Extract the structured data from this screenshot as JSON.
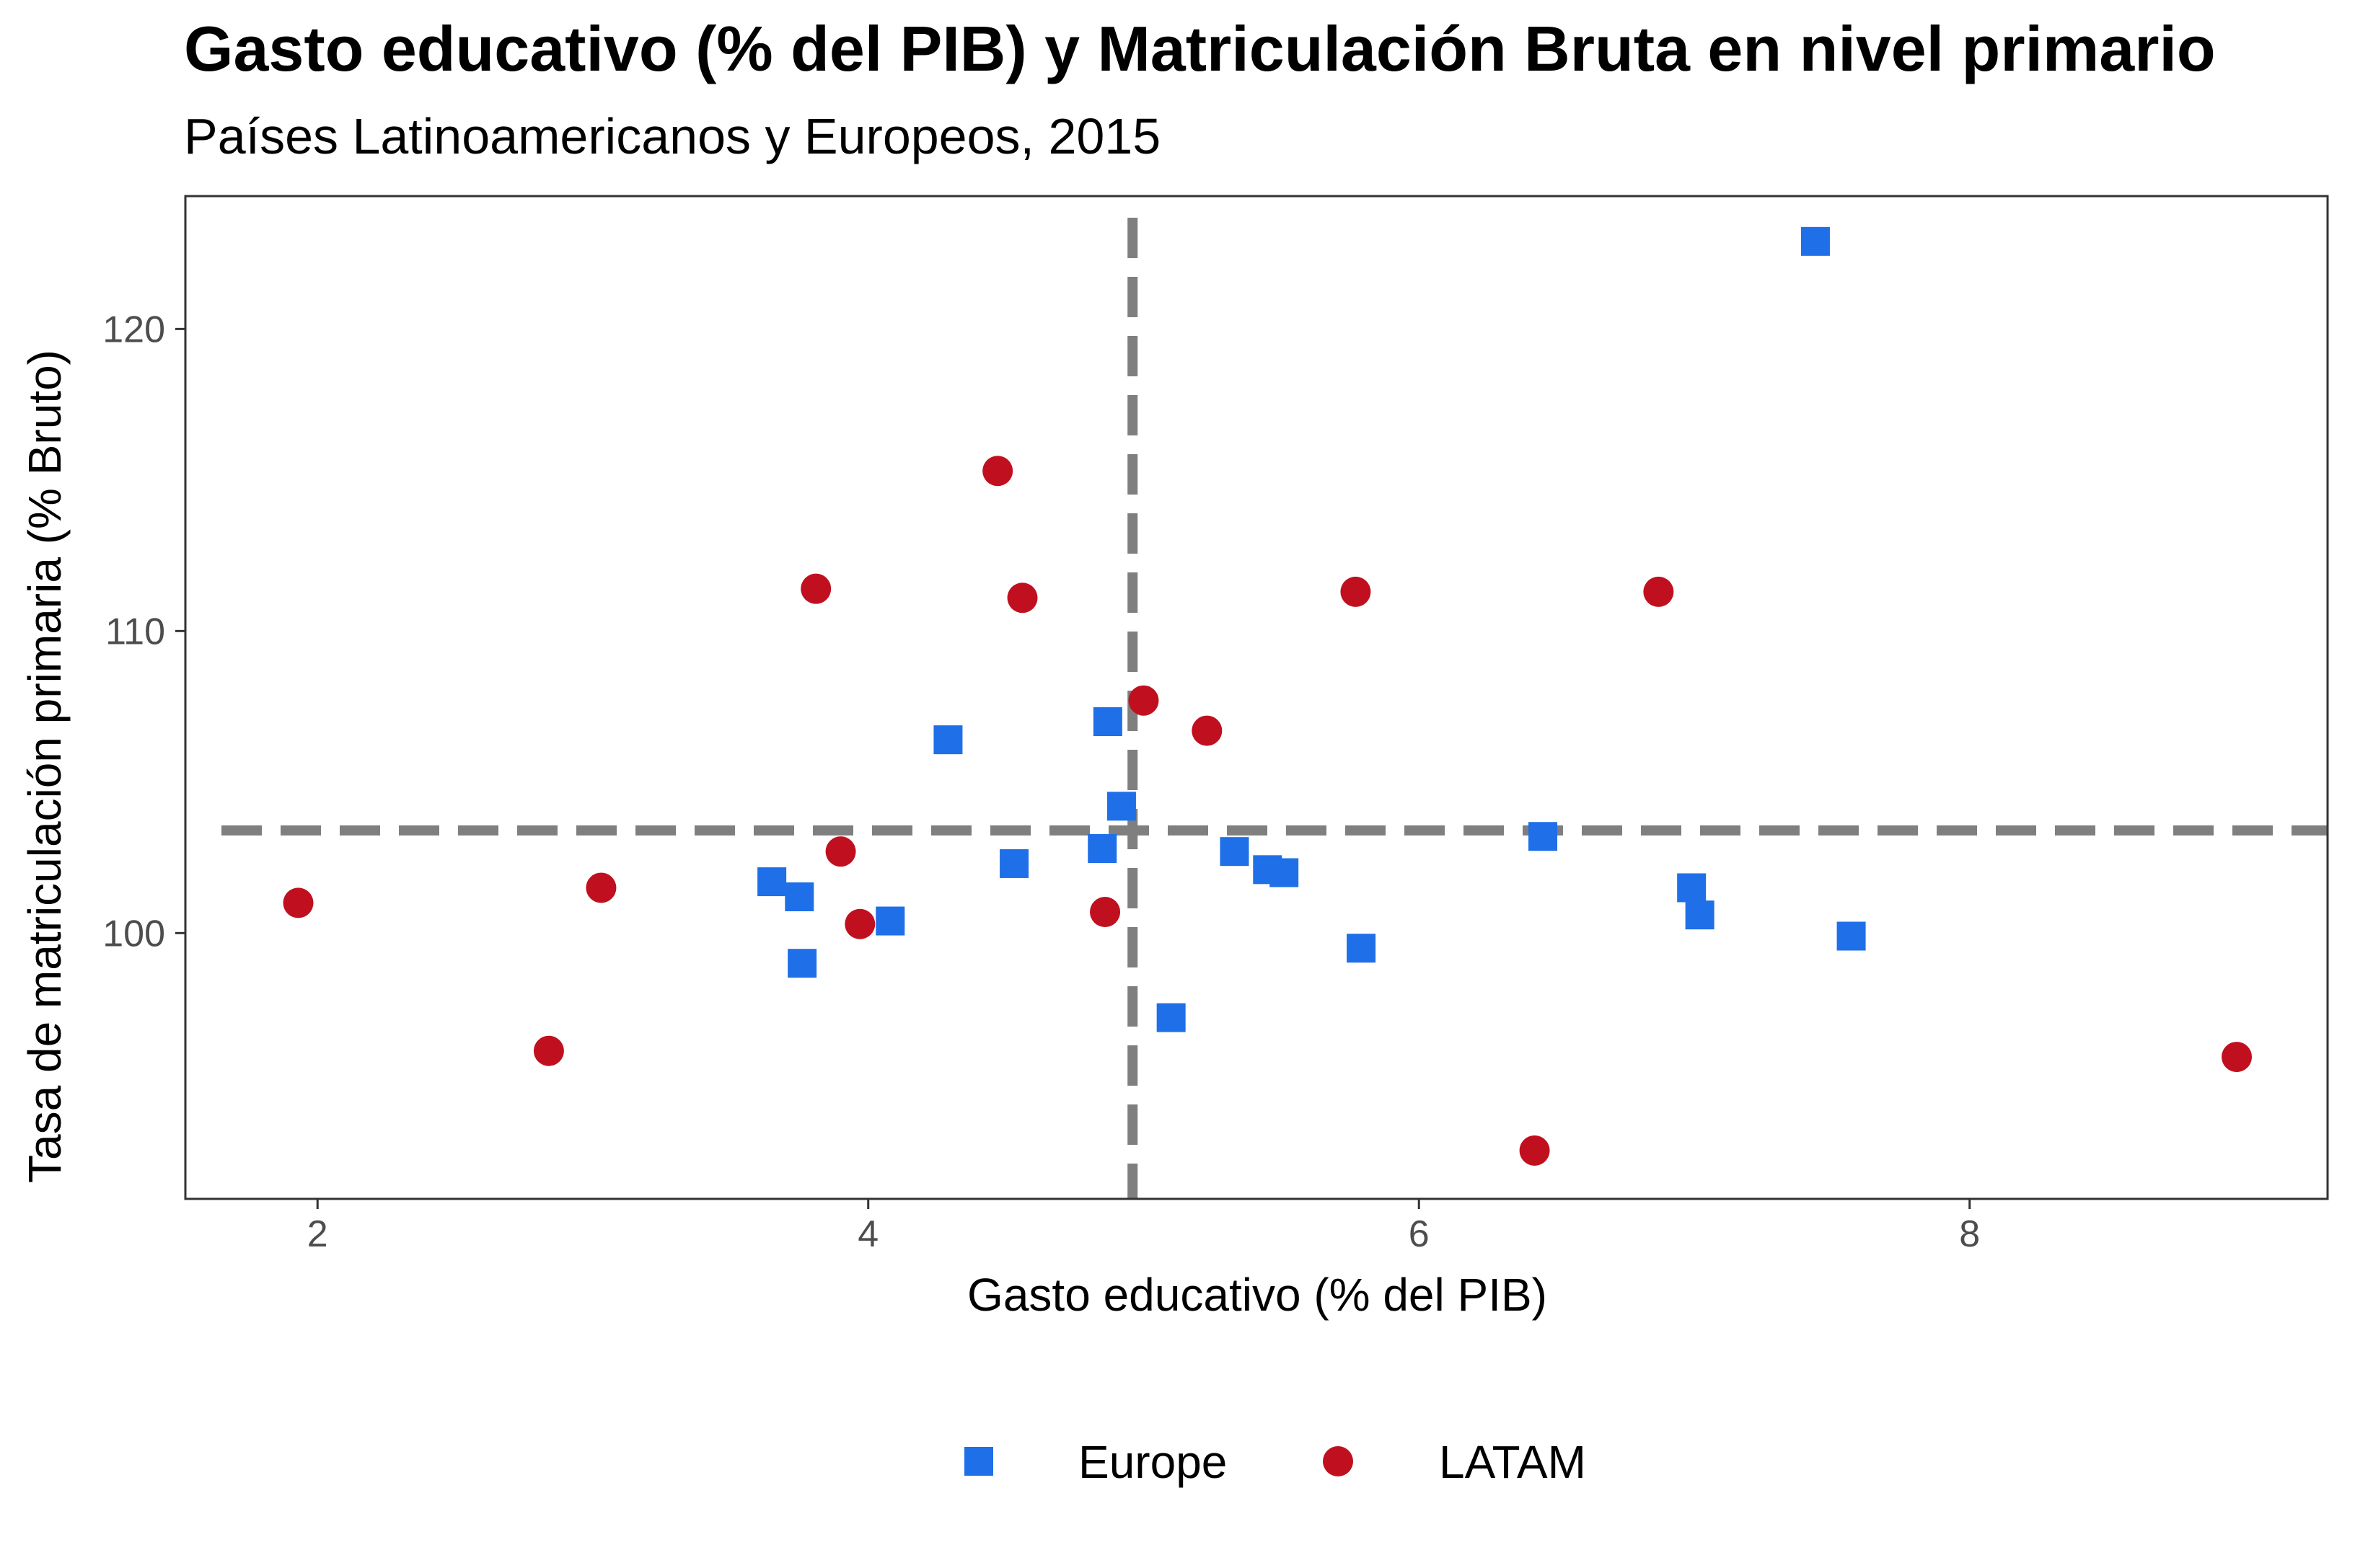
{
  "chart_data": {
    "type": "scatter",
    "title": "Gasto educativo (% del PIB) y Matriculación Bruta en nivel primario",
    "subtitle": "Países Latinoamericanos y Europeos, 2015",
    "xlabel": "Gasto educativo (% del PIB)",
    "ylabel": "Tasa de matriculación primaria (% Bruto)",
    "xlim": [
      1.52,
      9.3
    ],
    "ylim": [
      91.2,
      124.4
    ],
    "xticks": [
      2,
      4,
      6,
      8
    ],
    "yticks": [
      100,
      110,
      120
    ],
    "grid": false,
    "legend_position": "bottom",
    "reference_lines": {
      "vertical_x": 4.96,
      "horizontal_y": 103.4,
      "style": "dashed",
      "color": "#7f7f7f"
    },
    "series": [
      {
        "name": "Europe",
        "marker": "square",
        "color": "#1f6fe8",
        "points": [
          {
            "x": 7.44,
            "y": 122.9
          },
          {
            "x": 4.29,
            "y": 106.4
          },
          {
            "x": 4.87,
            "y": 107.0
          },
          {
            "x": 4.92,
            "y": 104.2
          },
          {
            "x": 4.85,
            "y": 102.8
          },
          {
            "x": 4.53,
            "y": 102.3
          },
          {
            "x": 3.65,
            "y": 101.7
          },
          {
            "x": 3.75,
            "y": 101.2
          },
          {
            "x": 3.76,
            "y": 99.0
          },
          {
            "x": 4.08,
            "y": 100.4
          },
          {
            "x": 5.33,
            "y": 102.7
          },
          {
            "x": 5.45,
            "y": 102.1
          },
          {
            "x": 5.51,
            "y": 102.0
          },
          {
            "x": 5.79,
            "y": 99.5
          },
          {
            "x": 5.1,
            "y": 97.2
          },
          {
            "x": 6.45,
            "y": 103.2
          },
          {
            "x": 6.99,
            "y": 101.5
          },
          {
            "x": 7.02,
            "y": 100.6
          },
          {
            "x": 7.57,
            "y": 99.9
          }
        ]
      },
      {
        "name": "LATAM",
        "marker": "circle",
        "color": "#c0101f",
        "points": [
          {
            "x": 1.93,
            "y": 101.0
          },
          {
            "x": 2.84,
            "y": 96.1
          },
          {
            "x": 3.03,
            "y": 101.5
          },
          {
            "x": 3.81,
            "y": 111.4
          },
          {
            "x": 3.9,
            "y": 102.7
          },
          {
            "x": 3.97,
            "y": 100.3
          },
          {
            "x": 4.47,
            "y": 115.3
          },
          {
            "x": 4.56,
            "y": 111.1
          },
          {
            "x": 4.86,
            "y": 100.7
          },
          {
            "x": 5.0,
            "y": 107.7
          },
          {
            "x": 5.23,
            "y": 106.7
          },
          {
            "x": 5.77,
            "y": 111.3
          },
          {
            "x": 6.42,
            "y": 92.8
          },
          {
            "x": 6.87,
            "y": 111.3
          },
          {
            "x": 8.97,
            "y": 95.9
          }
        ]
      }
    ]
  }
}
